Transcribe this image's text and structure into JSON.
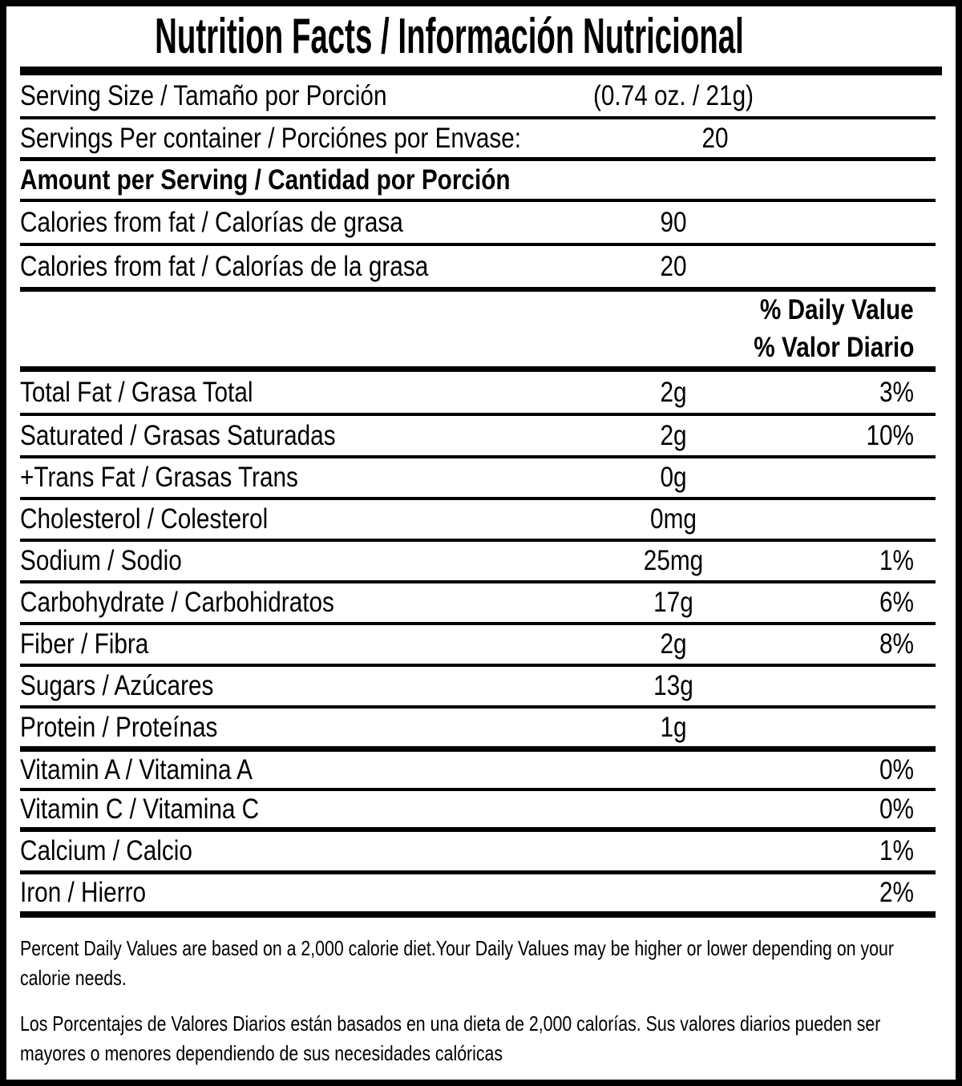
{
  "label": {
    "title": "Nutrition Facts / Información Nutricional",
    "serving_size": {
      "label": "Serving Size / Tamaño por Porción",
      "value": "(0.74 oz. / 21g)"
    },
    "servings_per_container": {
      "label": "Servings Per container / Porciónes por Envase:",
      "value": "20"
    },
    "amount_header": "Amount per Serving / Cantidad por Porción",
    "calories_rows": [
      {
        "label": "Calories from fat / Calorías de grasa",
        "value": "90"
      },
      {
        "label": "Calories from fat / Calorías de la grasa",
        "value": "20"
      }
    ],
    "dv_header_en": "% Daily Value",
    "dv_header_es": "% Valor Diario",
    "nutrients": [
      {
        "label": "Total Fat / Grasa Total",
        "amount": "2g",
        "dv": "3%"
      },
      {
        "label": "Saturated / Grasas Saturadas",
        "amount": "2g",
        "dv": "10%"
      },
      {
        "label": "+Trans Fat / Grasas Trans",
        "amount": "0g",
        "dv": ""
      },
      {
        "label": "Cholesterol / Colesterol",
        "amount": "0mg",
        "dv": ""
      },
      {
        "label": "Sodium / Sodio",
        "amount": "25mg",
        "dv": "1%"
      },
      {
        "label": "Carbohydrate / Carbohidratos",
        "amount": "17g",
        "dv": "6%"
      },
      {
        "label": "Fiber / Fibra",
        "amount": "2g",
        "dv": "8%"
      },
      {
        "label": "Sugars / Azúcares",
        "amount": "13g",
        "dv": ""
      },
      {
        "label": "Protein / Proteínas",
        "amount": "1g",
        "dv": ""
      },
      {
        "label": "Vitamin A / Vitamina A",
        "amount": "",
        "dv": "0%"
      },
      {
        "label": "Vitamin C / Vitamina C",
        "amount": "",
        "dv": "0%"
      },
      {
        "label": "Calcium / Calcio",
        "amount": "",
        "dv": "1%"
      },
      {
        "label": "Iron / Hierro",
        "amount": "",
        "dv": "2%"
      }
    ],
    "footnotes": {
      "en": [
        "Percent Daily Values are based on a 2,000 calorie diet.Your Daily Values may be higher or lower depending on your",
        "calorie needs."
      ],
      "es": [
        "Los Porcentajes de Valores Diarios están basados en una dieta de 2,000 calorías. Sus valores diarios pueden ser",
        "mayores o menores dependiendo de sus necesidades calóricas"
      ]
    },
    "colors": {
      "text": "#000000",
      "background": "#ffffff",
      "rule": "#000000"
    }
  }
}
